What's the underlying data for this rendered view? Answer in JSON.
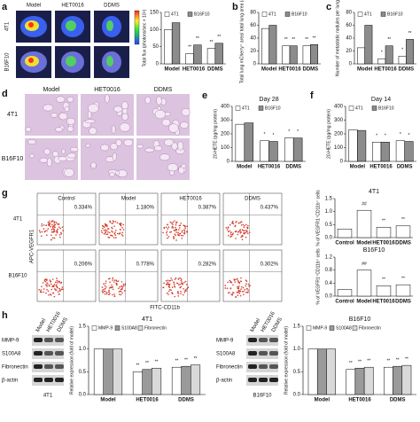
{
  "panels": {
    "letters": [
      "a",
      "b",
      "c",
      "d",
      "e",
      "f",
      "g",
      "h"
    ]
  },
  "imaging_a": {
    "columns": [
      "Model",
      "HET0016",
      "DDMS"
    ],
    "rows": [
      "4T1",
      "B16F10"
    ]
  },
  "histology_d": {
    "columns": [
      "Model",
      "HET0016",
      "DDMS"
    ],
    "rows": [
      "4T1",
      "B16F10"
    ]
  },
  "flow_g": {
    "columns": [
      "Control",
      "Model",
      "HET0016",
      "DDMS"
    ],
    "rows": [
      "4T1",
      "B16F10"
    ],
    "percentages": [
      [
        "0.334%",
        "1.180%",
        "0.387%",
        "0.437%"
      ],
      [
        "0.206%",
        "0.778%",
        "0.282%",
        "0.302%"
      ]
    ],
    "y_label": "APC-VEGFR1",
    "x_label": "FITC-CD11b"
  },
  "blots_h": [
    {
      "lanes": [
        "Model",
        "HET0016",
        "DDMS"
      ],
      "proteins": [
        "MMP-9",
        "S100A8",
        "Fibronectin",
        "β-actin"
      ],
      "caption": "4T1"
    },
    {
      "lanes": [
        "Model",
        "HET0016",
        "DDMS"
      ],
      "proteins": [
        "MMP-9",
        "S100A8",
        "Fibronectin",
        "β-actin"
      ],
      "caption": "B16F10"
    }
  ],
  "chart_data": [
    {
      "type": "bar",
      "y_label": "Total flux (photons/sec × 10⁸)",
      "categories": [
        "Model",
        "HET0016",
        "DDMS"
      ],
      "series": [
        {
          "name": "4T1",
          "color": "#ffffff",
          "values": [
            100,
            30,
            45
          ],
          "sig": [
            null,
            "**",
            "**"
          ]
        },
        {
          "name": "B16F10",
          "color": "#8c8c8c",
          "values": [
            120,
            55,
            60
          ],
          "sig": [
            null,
            "**",
            "**"
          ]
        }
      ],
      "ylim": [
        0,
        150
      ],
      "yticks": [
        0,
        50,
        100,
        150
      ]
    },
    {
      "type": "bar",
      "y_label": "Total lung mCherry⁺ area/ total lung area (a.u)",
      "categories": [
        "Model",
        "HET0016",
        "DDMS"
      ],
      "series": [
        {
          "name": "4T1",
          "color": "#ffffff",
          "values": [
            55,
            28,
            28
          ],
          "sig": [
            null,
            "**",
            "**"
          ]
        },
        {
          "name": "B16F10",
          "color": "#8c8c8c",
          "values": [
            60,
            28,
            30
          ],
          "sig": [
            null,
            "**",
            "**"
          ]
        }
      ],
      "ylim": [
        0,
        80
      ],
      "yticks": [
        0,
        20,
        40,
        60,
        80
      ]
    },
    {
      "type": "bar",
      "y_label": "Number of metastatic nodules per lung",
      "categories": [
        "Model",
        "HET0016",
        "DDMS"
      ],
      "series": [
        {
          "name": "4T1",
          "color": "#ffffff",
          "values": [
            25,
            8,
            12
          ],
          "sig": [
            null,
            "*",
            "*"
          ]
        },
        {
          "name": "B16F10",
          "color": "#8c8c8c",
          "values": [
            60,
            28,
            38
          ],
          "sig": [
            null,
            "**",
            "**"
          ]
        }
      ],
      "ylim": [
        0,
        80
      ],
      "yticks": [
        0,
        20,
        40,
        60,
        80
      ]
    },
    {
      "type": "bar",
      "title": "Day 28",
      "y_label": "20-HETE (pg/mg protein)",
      "categories": [
        "Model",
        "HET0016",
        "DDMS"
      ],
      "series": [
        {
          "name": "4T1",
          "color": "#ffffff",
          "values": [
            270,
            150,
            170
          ],
          "sig": [
            null,
            "*",
            "*"
          ]
        },
        {
          "name": "B16F10",
          "color": "#8c8c8c",
          "values": [
            280,
            145,
            170
          ],
          "sig": [
            null,
            "*",
            "*"
          ]
        }
      ],
      "ylim": [
        0,
        400
      ],
      "yticks": [
        0,
        100,
        200,
        300,
        400
      ]
    },
    {
      "type": "bar",
      "title": "Day 14",
      "y_label": "20-HETE (pg/mg protein)",
      "categories": [
        "Model",
        "HET0016",
        "DDMS"
      ],
      "series": [
        {
          "name": "4T1",
          "color": "#ffffff",
          "values": [
            230,
            140,
            150
          ],
          "sig": [
            null,
            "*",
            "*"
          ]
        },
        {
          "name": "B16F10",
          "color": "#8c8c8c",
          "values": [
            225,
            140,
            145
          ],
          "sig": [
            null,
            "*",
            "*"
          ]
        }
      ],
      "ylim": [
        0,
        400
      ],
      "yticks": [
        0,
        100,
        200,
        300,
        400
      ]
    },
    {
      "type": "bar",
      "title": "4T1",
      "y_label": "% of VEGFR1⁺CD11b⁺ cells",
      "categories": [
        "Control",
        "Model",
        "HET0016",
        "DDMS"
      ],
      "values": [
        0.33,
        1.05,
        0.4,
        0.45
      ],
      "sig": [
        null,
        "##",
        "**",
        "**"
      ],
      "color": "#ffffff",
      "ylim": [
        0,
        1.5
      ],
      "yticks": [
        {
          "value": 0,
          "label": "0.0"
        },
        0.5,
        {
          "value": 1,
          "label": "1.0"
        },
        1.5
      ]
    },
    {
      "type": "bar",
      "title": "B16F10",
      "y_label": "% of VEGFR1⁺CD11b⁺ cells",
      "categories": [
        "Control",
        "Model",
        "HET0016",
        "DDMS"
      ],
      "values": [
        0.2,
        0.8,
        0.32,
        0.35
      ],
      "sig": [
        null,
        "##",
        "**",
        "**"
      ],
      "color": "#ffffff",
      "ylim": [
        0,
        1.2
      ],
      "yticks": [
        {
          "value": 0,
          "label": "0.0"
        },
        0.4,
        0.8,
        1.2
      ]
    },
    {
      "type": "bar",
      "title": "4T1",
      "y_label": "Relative expression (fold of model)",
      "categories": [
        "Model",
        "HET0016",
        "DDMS"
      ],
      "series": [
        {
          "name": "MMP-9",
          "color": "#ffffff",
          "values": [
            1,
            0.5,
            0.6
          ],
          "sig": [
            null,
            "**",
            "**"
          ]
        },
        {
          "name": "S100A8",
          "color": "#9a9a9a",
          "values": [
            1,
            0.55,
            0.62
          ],
          "sig": [
            null,
            "**",
            "**"
          ]
        },
        {
          "name": "Fibronectin",
          "color": "#d9d9d9",
          "values": [
            1,
            0.58,
            0.65
          ],
          "sig": [
            null,
            "**",
            "**"
          ]
        }
      ],
      "ylim": [
        0,
        1.5
      ],
      "yticks": [
        {
          "value": 0,
          "label": "0.0"
        },
        0.5,
        {
          "value": 1,
          "label": "1.0"
        },
        1.5
      ]
    },
    {
      "type": "bar",
      "title": "B16F10",
      "y_label": "Relative expression (fold of model)",
      "categories": [
        "Model",
        "HET0016",
        "DDMS"
      ],
      "series": [
        {
          "name": "MMP-9",
          "color": "#ffffff",
          "values": [
            1,
            0.55,
            0.6
          ],
          "sig": [
            null,
            "**",
            "**"
          ]
        },
        {
          "name": "S100A8",
          "color": "#9a9a9a",
          "values": [
            1,
            0.58,
            0.62
          ],
          "sig": [
            null,
            "**",
            "**"
          ]
        },
        {
          "name": "Fibronectin",
          "color": "#d9d9d9",
          "values": [
            1,
            0.6,
            0.64
          ],
          "sig": [
            null,
            "**",
            "**"
          ]
        }
      ],
      "ylim": [
        0,
        1.5
      ],
      "yticks": [
        {
          "value": 0,
          "label": "0.0"
        },
        0.5,
        {
          "value": 1,
          "label": "1.0"
        },
        1.5
      ]
    }
  ]
}
